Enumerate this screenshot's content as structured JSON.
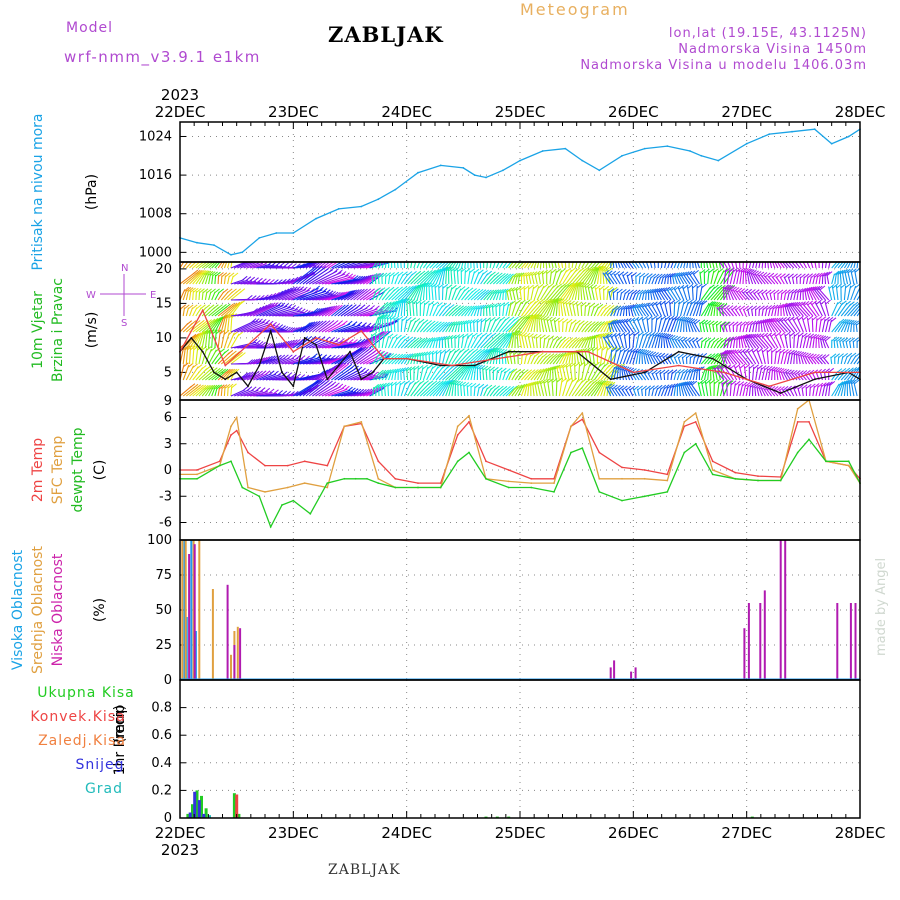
{
  "header": {
    "model_label": "Model",
    "model_name": "wrf-nmm_v3.9.1 e1km",
    "station": "ZABLJAK",
    "meteogram": "Meteogram",
    "coords": "lon,lat (19.15E, 43.1125N)",
    "elevation": "Nadmorska Visina 1450m",
    "model_elevation": "Nadmorska Visina u modelu 1406.03m",
    "credit": "made by Angel"
  },
  "footer": {
    "station": "ZABLJAK"
  },
  "time_axis": {
    "year_top": "2023",
    "year_bottom": "2023",
    "labels": [
      "22DEC",
      "23DEC",
      "24DEC",
      "25DEC",
      "26DEC",
      "27DEC",
      "28DEC"
    ]
  },
  "colors": {
    "pressure": "#1aa3e6",
    "temp2m": "#ee4444",
    "sfc": "#e0a040",
    "dewpt": "#22cc22",
    "high": "#2299ee",
    "mid": "#e0a040",
    "low": "#b01ab0",
    "snow": "#3333dd",
    "grad": "#22bbbb"
  },
  "chart_data": [
    {
      "type": "line",
      "panel": "pressure",
      "ylabel_lines": [
        "Pritisak na nivou mora"
      ],
      "unit": "(hPa)",
      "x_unit": "day offset from 22DEC 00UTC",
      "ylim": [
        998,
        1027
      ],
      "yticks": [
        1000,
        1008,
        1016,
        1024
      ],
      "grid": true,
      "series": [
        {
          "color": "#1aa3e6",
          "x": [
            0,
            0.15,
            0.3,
            0.45,
            0.55,
            0.7,
            0.85,
            1.0,
            1.2,
            1.4,
            1.6,
            1.75,
            1.9,
            2.1,
            2.3,
            2.5,
            2.6,
            2.7,
            2.85,
            3.0,
            3.2,
            3.4,
            3.55,
            3.7,
            3.9,
            4.1,
            4.3,
            4.5,
            4.6,
            4.75,
            5.0,
            5.2,
            5.4,
            5.6,
            5.75,
            5.9,
            6.0
          ],
          "y": [
            1003,
            1002,
            1001.5,
            999.5,
            1000,
            1003,
            1004,
            1004,
            1007,
            1009,
            1009.5,
            1011,
            1013,
            1016.5,
            1018,
            1017.5,
            1016,
            1015.5,
            1017,
            1019,
            1021,
            1021.5,
            1019,
            1017,
            1020,
            1021.5,
            1022,
            1021,
            1020,
            1019,
            1022.5,
            1024.5,
            1025,
            1025.5,
            1022.5,
            1024,
            1025.5
          ]
        }
      ]
    },
    {
      "type": "line",
      "panel": "wind",
      "ylabel_lines": [
        "10m Vjetar",
        "Brzina i Pravac"
      ],
      "unit": "(m/s)",
      "direction_legend": [
        "N",
        "W",
        "E",
        "S"
      ],
      "x_unit": "day offset from 22DEC 00UTC",
      "ylim": [
        1,
        21
      ],
      "yticks": [
        5,
        10,
        15,
        20
      ],
      "ytick_labels": [
        "5",
        "10",
        "15",
        "20"
      ],
      "bottom_label": "9",
      "grid": true,
      "series": [
        {
          "color": "#111111",
          "x": [
            0,
            0.1,
            0.2,
            0.3,
            0.4,
            0.5,
            0.6,
            0.7,
            0.8,
            0.9,
            1.0,
            1.1,
            1.2,
            1.3,
            1.4,
            1.5,
            1.6,
            1.7,
            1.8,
            2.0,
            2.3,
            2.6,
            2.9,
            3.2,
            3.5,
            3.8,
            4.1,
            4.4,
            4.7,
            5.0,
            5.3,
            5.6,
            5.9,
            6.0
          ],
          "y": [
            8,
            10,
            8,
            5,
            4,
            5,
            3,
            6,
            11,
            5,
            3,
            10,
            9,
            4,
            6,
            8,
            4,
            5,
            7,
            7,
            6,
            6,
            8,
            8,
            8,
            4,
            5,
            8,
            7,
            4,
            2,
            4,
            5,
            4
          ]
        },
        {
          "color": "#ee4444",
          "x": [
            0,
            0.2,
            0.4,
            0.6,
            0.8,
            1.0,
            1.2,
            1.4,
            1.6,
            1.8,
            2.0,
            2.4,
            2.8,
            3.2,
            3.6,
            4.0,
            4.4,
            4.8,
            5.2,
            5.6,
            6.0
          ],
          "y": [
            8,
            14,
            6,
            9,
            12,
            8,
            10,
            9,
            11,
            7,
            7,
            6,
            7,
            8,
            8,
            5,
            6,
            5,
            3,
            5,
            5
          ]
        }
      ]
    },
    {
      "type": "line",
      "panel": "temperature",
      "ylabel_lines": [
        "2m Temp",
        "SFC Temp",
        "dewpt Temp"
      ],
      "unit": "(C)",
      "x_unit": "day offset from 22DEC 00UTC",
      "ylim": [
        -8,
        8
      ],
      "yticks": [
        -6,
        -3,
        0,
        3,
        6
      ],
      "grid": true,
      "series": [
        {
          "name": "2m Temp",
          "color": "#ee4444",
          "x": [
            0,
            0.15,
            0.35,
            0.45,
            0.5,
            0.6,
            0.75,
            0.95,
            1.1,
            1.3,
            1.45,
            1.6,
            1.75,
            1.9,
            2.1,
            2.3,
            2.45,
            2.55,
            2.7,
            2.9,
            3.1,
            3.3,
            3.45,
            3.55,
            3.7,
            3.9,
            4.1,
            4.3,
            4.45,
            4.55,
            4.7,
            4.9,
            5.1,
            5.3,
            5.45,
            5.55,
            5.7,
            5.9,
            6.0
          ],
          "y": [
            0,
            0,
            1,
            4,
            4.5,
            2,
            0.5,
            0.5,
            1,
            0.5,
            5,
            5.3,
            1,
            -1,
            -1.5,
            -1.5,
            4,
            5.5,
            1,
            0,
            -1,
            -1,
            5,
            5.8,
            2,
            0.3,
            0,
            -0.5,
            5,
            5.5,
            1,
            -0.3,
            -0.7,
            -0.8,
            5.5,
            5.5,
            1,
            0.5,
            -1
          ]
        },
        {
          "name": "SFC Temp",
          "color": "#e0a040",
          "x": [
            0,
            0.15,
            0.35,
            0.45,
            0.5,
            0.6,
            0.75,
            0.95,
            1.1,
            1.3,
            1.45,
            1.6,
            1.75,
            1.9,
            2.1,
            2.3,
            2.45,
            2.55,
            2.7,
            2.9,
            3.1,
            3.3,
            3.45,
            3.55,
            3.7,
            3.9,
            4.1,
            4.3,
            4.45,
            4.55,
            4.7,
            4.9,
            5.1,
            5.3,
            5.45,
            5.55,
            5.7,
            5.9,
            6.0
          ],
          "y": [
            -0.5,
            -0.5,
            0.5,
            5,
            6,
            -2,
            -2.5,
            -2,
            -1.5,
            -2,
            5,
            5.5,
            -1,
            -2,
            -2,
            -2,
            5,
            6.2,
            -1,
            -1.3,
            -1.5,
            -1.5,
            5,
            6.5,
            -1,
            -1,
            -1,
            -1.2,
            5.5,
            6.5,
            0,
            -1,
            -1.2,
            -1.2,
            7,
            8,
            1,
            0.5,
            -1.5
          ]
        },
        {
          "name": "dewpt Temp",
          "color": "#22cc22",
          "x": [
            0,
            0.15,
            0.35,
            0.45,
            0.55,
            0.7,
            0.8,
            0.9,
            1.0,
            1.15,
            1.3,
            1.45,
            1.55,
            1.65,
            1.75,
            1.9,
            2.1,
            2.3,
            2.45,
            2.55,
            2.7,
            2.9,
            3.1,
            3.3,
            3.45,
            3.55,
            3.7,
            3.9,
            4.1,
            4.3,
            4.45,
            4.55,
            4.7,
            4.9,
            5.1,
            5.3,
            5.45,
            5.55,
            5.7,
            5.9,
            6.0
          ],
          "y": [
            -1,
            -1,
            0.5,
            1,
            -2,
            -3,
            -6.5,
            -4,
            -3.5,
            -5,
            -1.5,
            -1,
            -1,
            -1,
            -1.5,
            -2,
            -2,
            -2,
            1,
            2,
            -1,
            -2,
            -2,
            -2.5,
            2,
            2.5,
            -2.5,
            -3.5,
            -3,
            -2.5,
            2,
            3,
            -0.5,
            -1,
            -1.2,
            -1.2,
            2,
            3.5,
            1,
            1,
            -1.5
          ]
        }
      ]
    },
    {
      "type": "bar",
      "panel": "cloud",
      "ylabel_lines": [
        "Visoka Oblacnost",
        "Srednja Oblacnost",
        "Niska Oblacnost"
      ],
      "unit": "(%)",
      "x_unit": "day offset from 22DEC 00UTC",
      "ylim": [
        0,
        100
      ],
      "yticks": [
        0,
        25,
        50,
        75,
        100
      ],
      "grid": true,
      "series": [
        {
          "name": "Visoka Oblacnost",
          "color": "#2299ee",
          "x": [
            0.04,
            0.06,
            0.1,
            0.14
          ],
          "values": [
            100,
            45,
            100,
            35
          ]
        },
        {
          "name": "Srednja Oblacnost",
          "color": "#e0a040",
          "x": [
            0.02,
            0.05,
            0.12,
            0.17,
            0.29,
            0.45,
            0.48,
            0.51
          ],
          "values": [
            100,
            100,
            100,
            100,
            65,
            18,
            35,
            38
          ]
        },
        {
          "name": "Niska Oblacnost",
          "color": "#b01ab0",
          "x": [
            0.08,
            0.13,
            0.42,
            0.48,
            0.53,
            3.8,
            3.83,
            3.98,
            4.02,
            4.98,
            5.02,
            5.12,
            5.16,
            5.3,
            5.34,
            5.8,
            5.92,
            5.96
          ],
          "values": [
            90,
            97,
            68,
            25,
            37,
            9,
            14,
            6,
            9,
            37,
            55,
            55,
            64,
            100,
            100,
            55,
            55,
            55
          ]
        }
      ]
    },
    {
      "type": "bar",
      "panel": "precip",
      "ylabel_lines": [
        "1hr Precip"
      ],
      "unit": "(mm)",
      "legend": [
        "Ukupna Kisa",
        "Konvek.Kisa",
        "Zaledj.Kisa",
        "Snijeg",
        "Grad"
      ],
      "x_unit": "day offset from 22DEC 00UTC",
      "ylim": [
        0,
        1
      ],
      "yticks": [
        0,
        0.2,
        0.4,
        0.6,
        0.8
      ],
      "ytick_labels": [
        "0",
        "0.2",
        "0.4",
        "0.6",
        "0.8"
      ],
      "grid": true,
      "series": [
        {
          "name": "Ukupna Kisa",
          "color": "#22cc22",
          "x": [
            0.07,
            0.11,
            0.15,
            0.19,
            0.23,
            0.48,
            0.52,
            2.7,
            2.8,
            2.9,
            5.05
          ],
          "values": [
            0.03,
            0.1,
            0.2,
            0.16,
            0.07,
            0.18,
            0.03,
            0.01,
            0.01,
            0.01,
            0.01
          ]
        },
        {
          "name": "Konvek.Kisa",
          "color": "#ee4444",
          "x": [
            0.5
          ],
          "values": [
            0.17
          ]
        },
        {
          "name": "Snijeg",
          "color": "#3333dd",
          "x": [
            0.09,
            0.13,
            0.17,
            0.21
          ],
          "values": [
            0.04,
            0.19,
            0.13,
            0.03
          ]
        },
        {
          "name": "Grad",
          "color": "#22bbbb",
          "x": [
            0.26
          ],
          "values": [
            0.02
          ]
        }
      ]
    }
  ]
}
